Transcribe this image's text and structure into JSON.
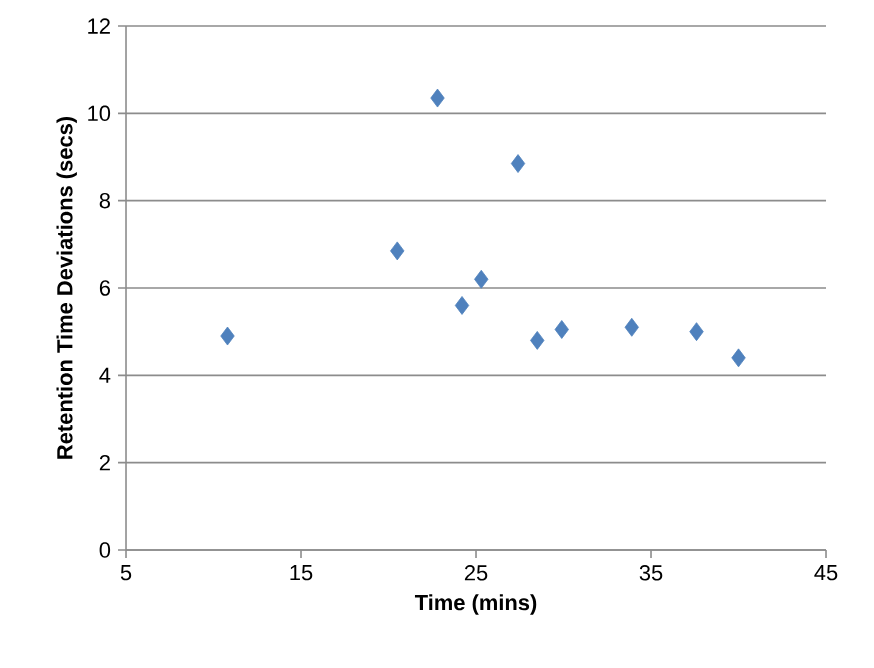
{
  "chart_data": {
    "type": "scatter",
    "xlabel": "Time (mins)",
    "ylabel": "Retention Time Deviations (secs)",
    "xlim": [
      5,
      45
    ],
    "xticks": [
      5,
      15,
      25,
      35,
      45
    ],
    "ylim": [
      0,
      12
    ],
    "yticks": [
      0,
      2,
      4,
      6,
      8,
      10,
      12
    ],
    "grid": "y",
    "marker": "diamond",
    "x": [
      10.8,
      20.5,
      22.8,
      24.2,
      25.3,
      27.4,
      28.5,
      29.9,
      33.9,
      37.6,
      40.0
    ],
    "values": [
      4.9,
      6.85,
      10.35,
      5.6,
      6.2,
      8.85,
      4.8,
      5.05,
      5.1,
      5.0,
      4.4
    ],
    "color": "#4f81bd"
  }
}
